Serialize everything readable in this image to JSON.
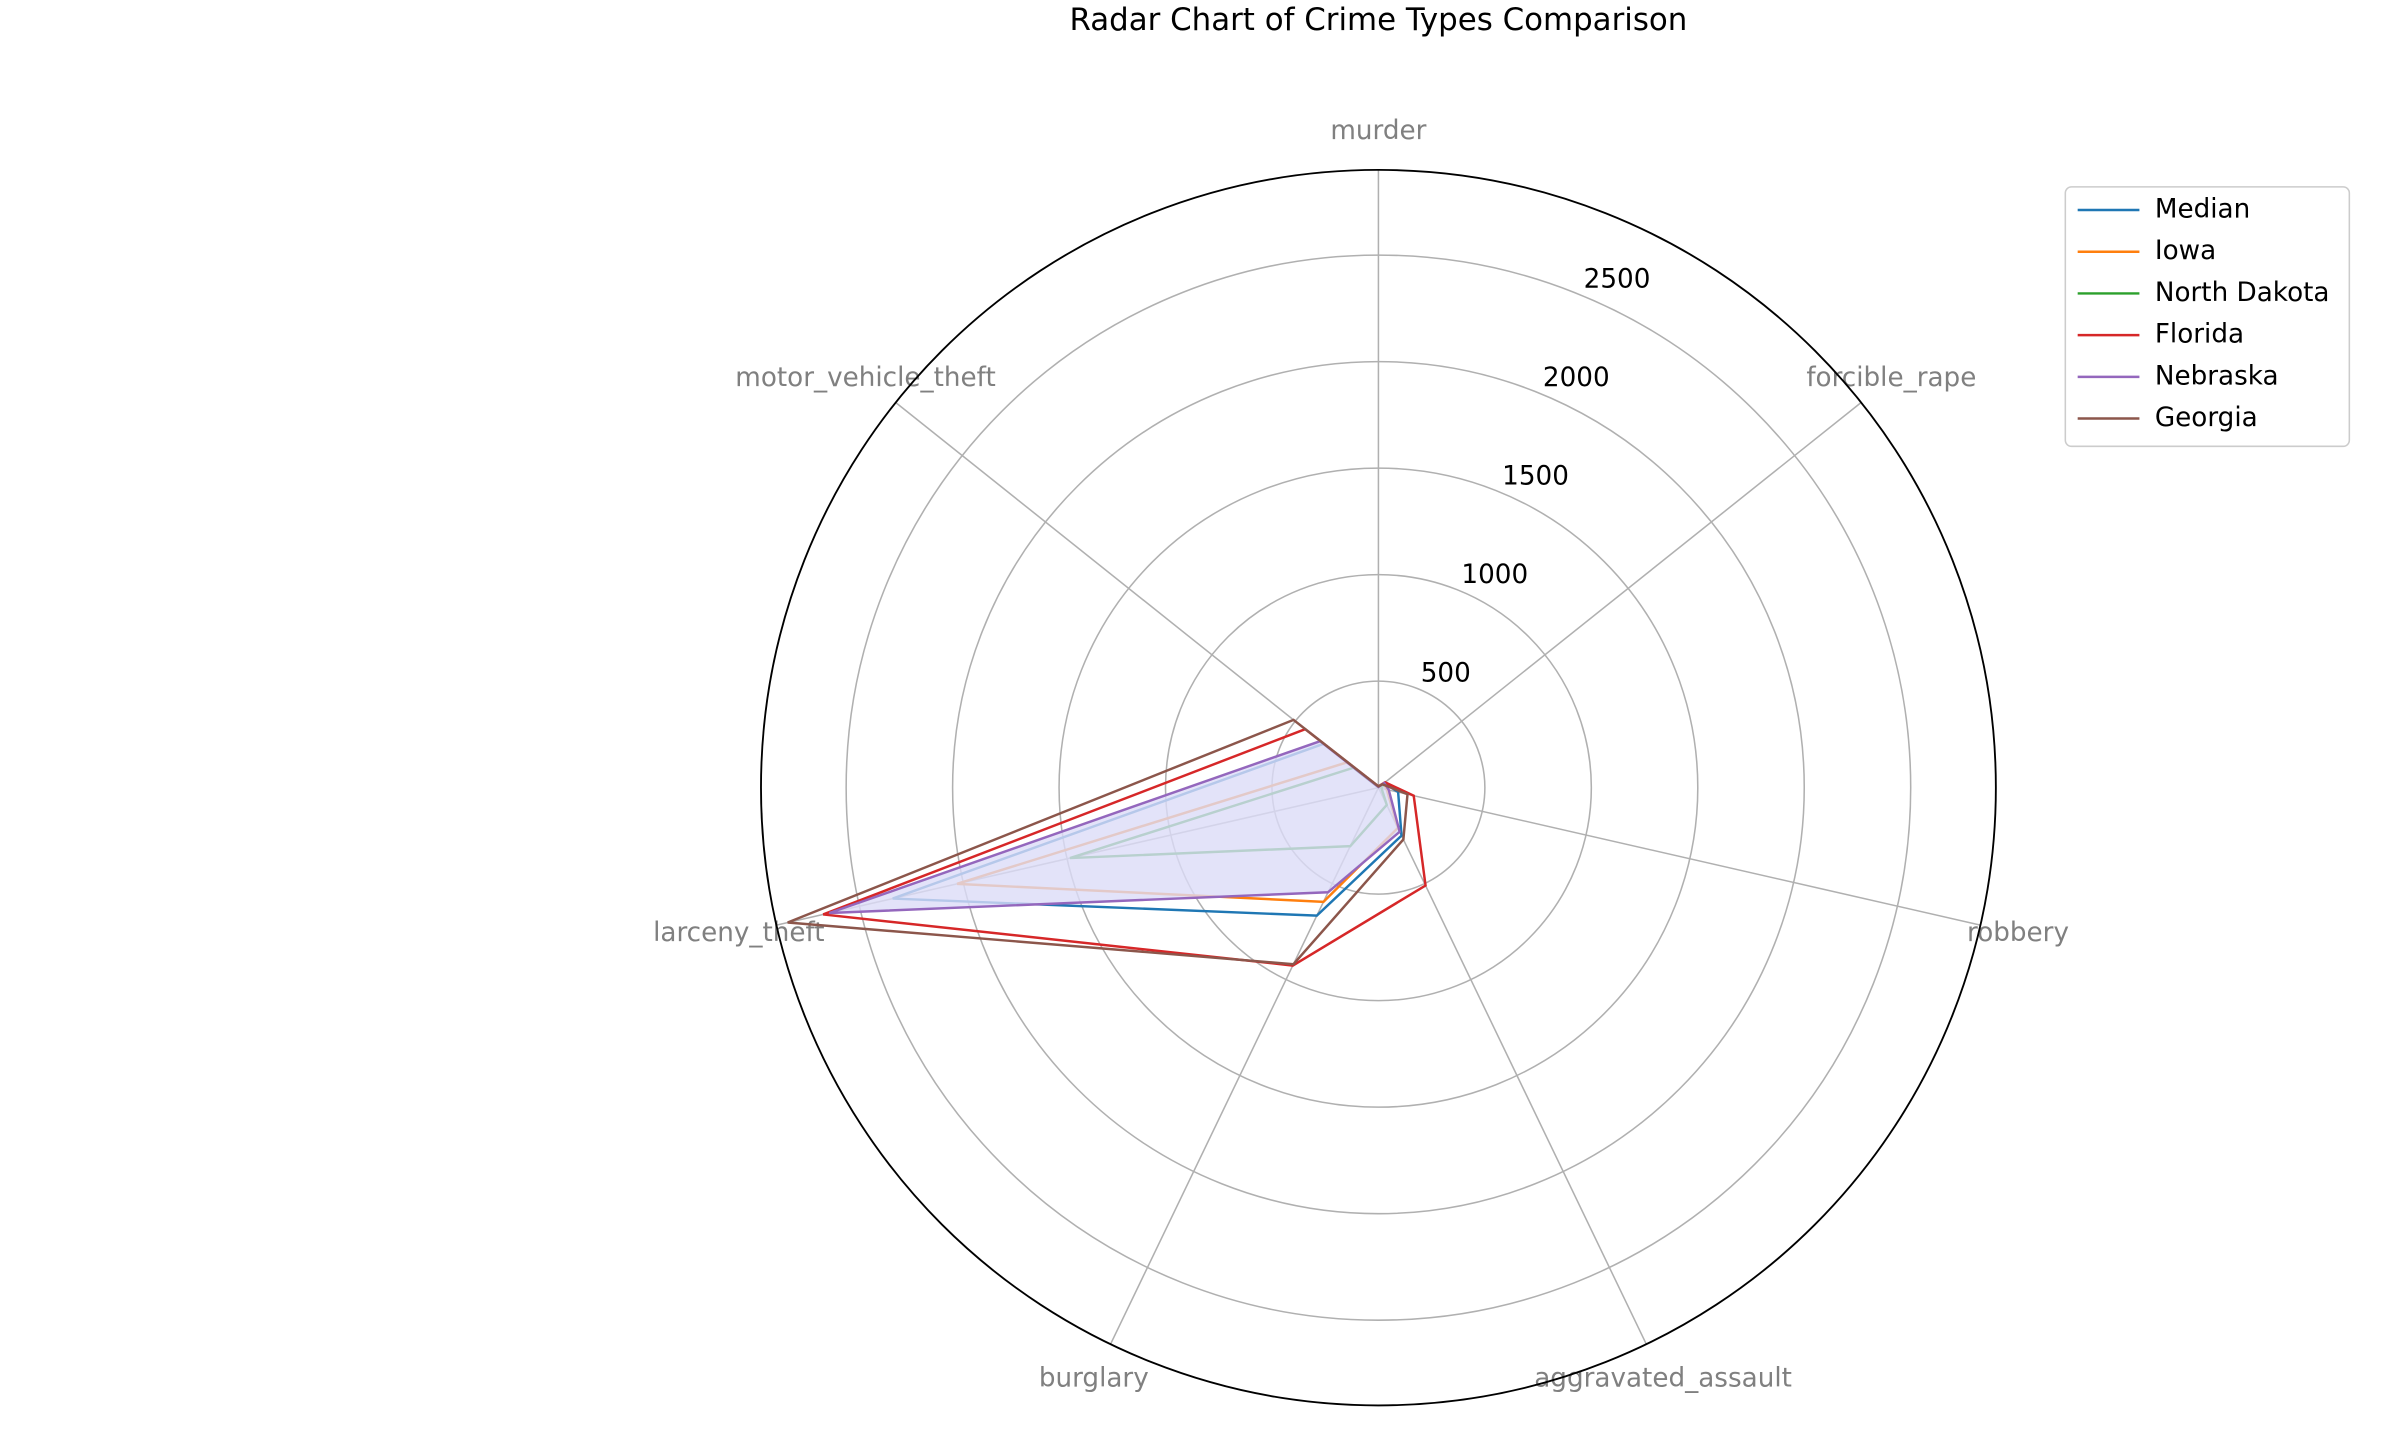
{
  "chart_data": {
    "type": "radar",
    "title": "Radar Chart of Crime Types Comparison",
    "categories": [
      "murder",
      "forcible_rape",
      "robbery",
      "aggravated_assault",
      "burglary",
      "larceny_theft",
      "motor_vehicle_theft"
    ],
    "ylim": [
      0,
      2900
    ],
    "yticks": [
      500,
      1000,
      1500,
      2000,
      2500
    ],
    "grid": true,
    "legend": "upper right",
    "series": [
      {
        "name": "Median",
        "color": "#1f77b4",
        "values": [
          4,
          35,
          95,
          250,
          667,
          2340,
          330
        ]
      },
      {
        "name": "Iowa",
        "color": "#ff7f0e",
        "values": [
          2,
          30,
          40,
          210,
          595,
          2030,
          190
        ]
      },
      {
        "name": "North Dakota",
        "color": "#2ca02c",
        "values": [
          2,
          40,
          15,
          90,
          305,
          1486,
          150
        ]
      },
      {
        "name": "Florida",
        "color": "#d62728",
        "values": [
          6,
          40,
          170,
          510,
          927,
          2675,
          440
        ]
      },
      {
        "name": "Nebraska",
        "color": "#9467bd",
        "fill": "#dcdcf8",
        "values": [
          3,
          35,
          50,
          230,
          545,
          2645,
          350
        ]
      },
      {
        "name": "Georgia",
        "color": "#8c564b",
        "values": [
          6,
          25,
          140,
          270,
          920,
          2846,
          510
        ]
      }
    ]
  }
}
